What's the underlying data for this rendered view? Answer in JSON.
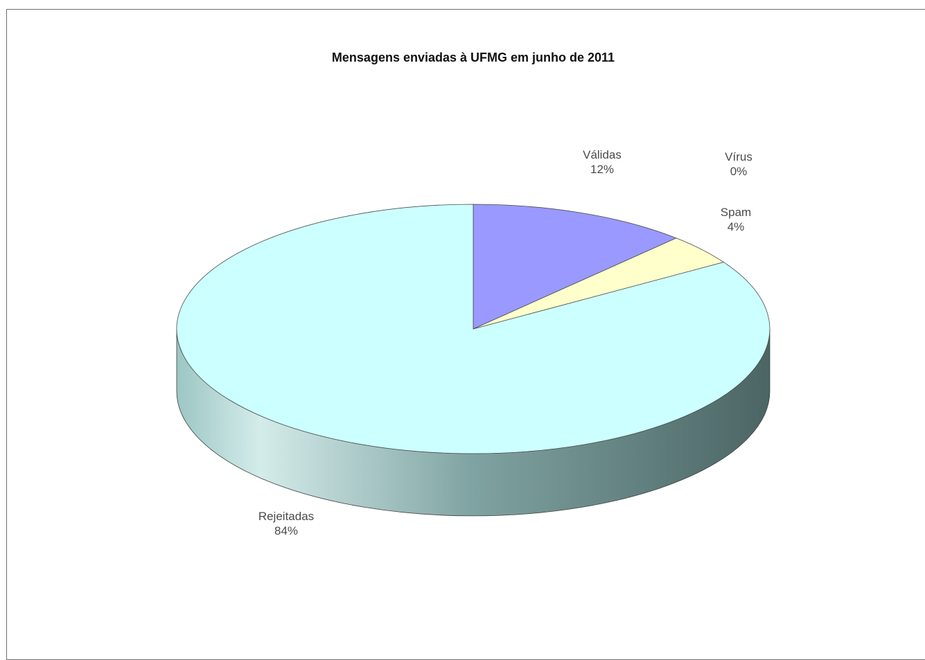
{
  "chart_data": {
    "type": "pie",
    "title": "Mensagens enviadas à UFMG em junho de 2011",
    "three_d": true,
    "slices": [
      {
        "name": "Válidas",
        "value": 12,
        "label": "12%",
        "color": "#9999ff"
      },
      {
        "name": "Spam",
        "value": 4,
        "label": "4%",
        "color": "#ffffcc"
      },
      {
        "name": "Vírus",
        "value": 0,
        "label": "0%",
        "color": "#ccffcc"
      },
      {
        "name": "Rejeitadas",
        "value": 84,
        "label": "84%",
        "color": "#ccffff"
      }
    ],
    "side_colors": [
      "#9cc6c4",
      "#d4ecea",
      "#7fa3a2",
      "#4b6564"
    ]
  }
}
